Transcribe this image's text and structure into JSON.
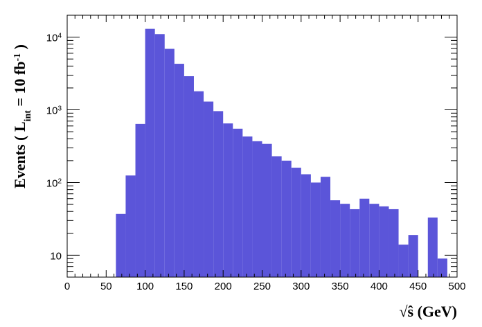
{
  "chart_data": {
    "type": "bar",
    "title": "",
    "xlabel": "√ŝ (GeV)",
    "ylabel_main": "Events  ( L",
    "ylabel_sub": "int",
    "ylabel_mid": " = 10 fb",
    "ylabel_sup": "-1",
    "ylabel_end": " )",
    "bin_width": 12.5,
    "bin_edges_start": 0,
    "xlim": [
      0,
      500
    ],
    "ylim": [
      5,
      20000
    ],
    "y_scale": "log",
    "x_ticks": [
      "0",
      "50",
      "100",
      "150",
      "200",
      "250",
      "300",
      "350",
      "400",
      "450",
      "500"
    ],
    "y_ticks": [
      {
        "value": 10,
        "base": "10",
        "exp": ""
      },
      {
        "value": 100,
        "base": "10",
        "exp": "2"
      },
      {
        "value": 1000,
        "base": "10",
        "exp": "3"
      },
      {
        "value": 10000,
        "base": "10",
        "exp": "4"
      }
    ],
    "color": "#5b55d9",
    "values": [
      0,
      0,
      0,
      0,
      0,
      37,
      125,
      640,
      13000,
      11000,
      6900,
      4300,
      2900,
      1800,
      1300,
      960,
      650,
      550,
      430,
      370,
      340,
      230,
      200,
      160,
      130,
      100,
      120,
      57,
      51,
      43,
      60,
      51,
      47,
      43,
      14,
      19,
      0,
      33,
      9
    ]
  }
}
